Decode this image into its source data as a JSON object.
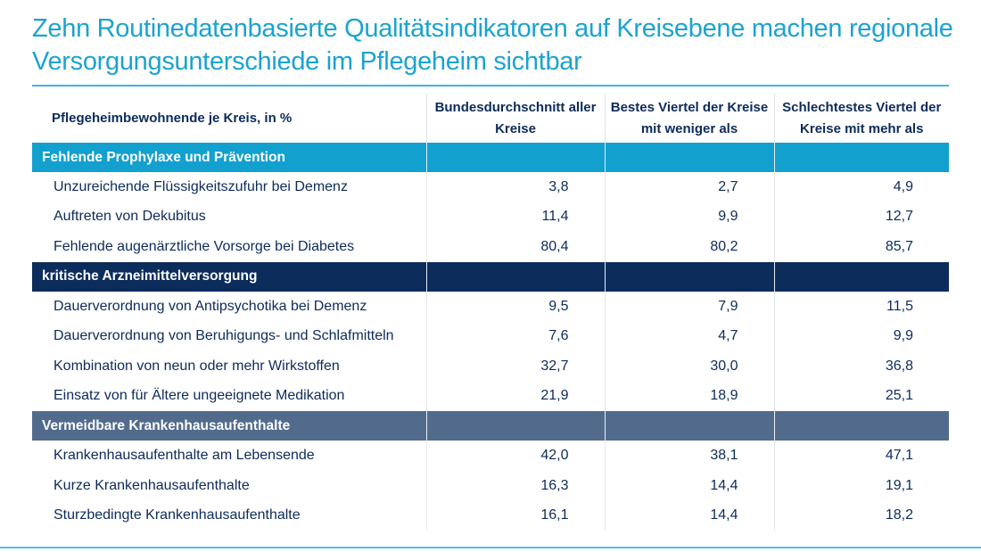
{
  "title": "Zehn Routinedatenbasierte Qualitätsindikatoren auf Kreisebene machen regionale Versorgungsunterschiede im Pflegeheim sichtbar",
  "headers": [
    "Pflegeheimbewohnende je Kreis, in %",
    "Bundesdurchschnitt aller Kreise",
    "Bestes Viertel der Kreise mit weniger als",
    "Schlechtestes Viertel der Kreise mit mehr als"
  ],
  "section_colors": [
    "#12a0cf",
    "#0c2c5c",
    "#526b8c"
  ],
  "sections": [
    {
      "label": "Fehlende Prophylaxe und Prävention",
      "rows": [
        [
          "Unzureichende Flüssigkeitszufuhr bei Demenz",
          "3,8",
          "2,7",
          "4,9"
        ],
        [
          "Auftreten von Dekubitus",
          "11,4",
          "9,9",
          "12,7"
        ],
        [
          "Fehlende augenärztliche Vorsorge bei Diabetes",
          "80,4",
          "80,2",
          "85,7"
        ]
      ]
    },
    {
      "label": "kritische Arzneimittelversorgung",
      "rows": [
        [
          "Dauerverordnung von Antipsychotika bei Demenz",
          "9,5",
          "7,9",
          "11,5"
        ],
        [
          "Dauerverordnung von Beruhigungs- und Schlafmitteln",
          "7,6",
          "4,7",
          "9,9"
        ],
        [
          "Kombination von neun oder mehr Wirkstoffen",
          "32,7",
          "30,0",
          "36,8"
        ],
        [
          "Einsatz von für Ältere ungeeignete Medikation",
          "21,9",
          "18,9",
          "25,1"
        ]
      ]
    },
    {
      "label": "Vermeidbare Krankenhausaufenthalte",
      "rows": [
        [
          "Krankenhausaufenthalte am Lebensende",
          "42,0",
          "38,1",
          "47,1"
        ],
        [
          "Kurze Krankenhausaufenthalte",
          "16,3",
          "14,4",
          "19,1"
        ],
        [
          "Sturzbedingte Krankenhausaufenthalte",
          "16,1",
          "14,4",
          "18,2"
        ]
      ]
    }
  ]
}
